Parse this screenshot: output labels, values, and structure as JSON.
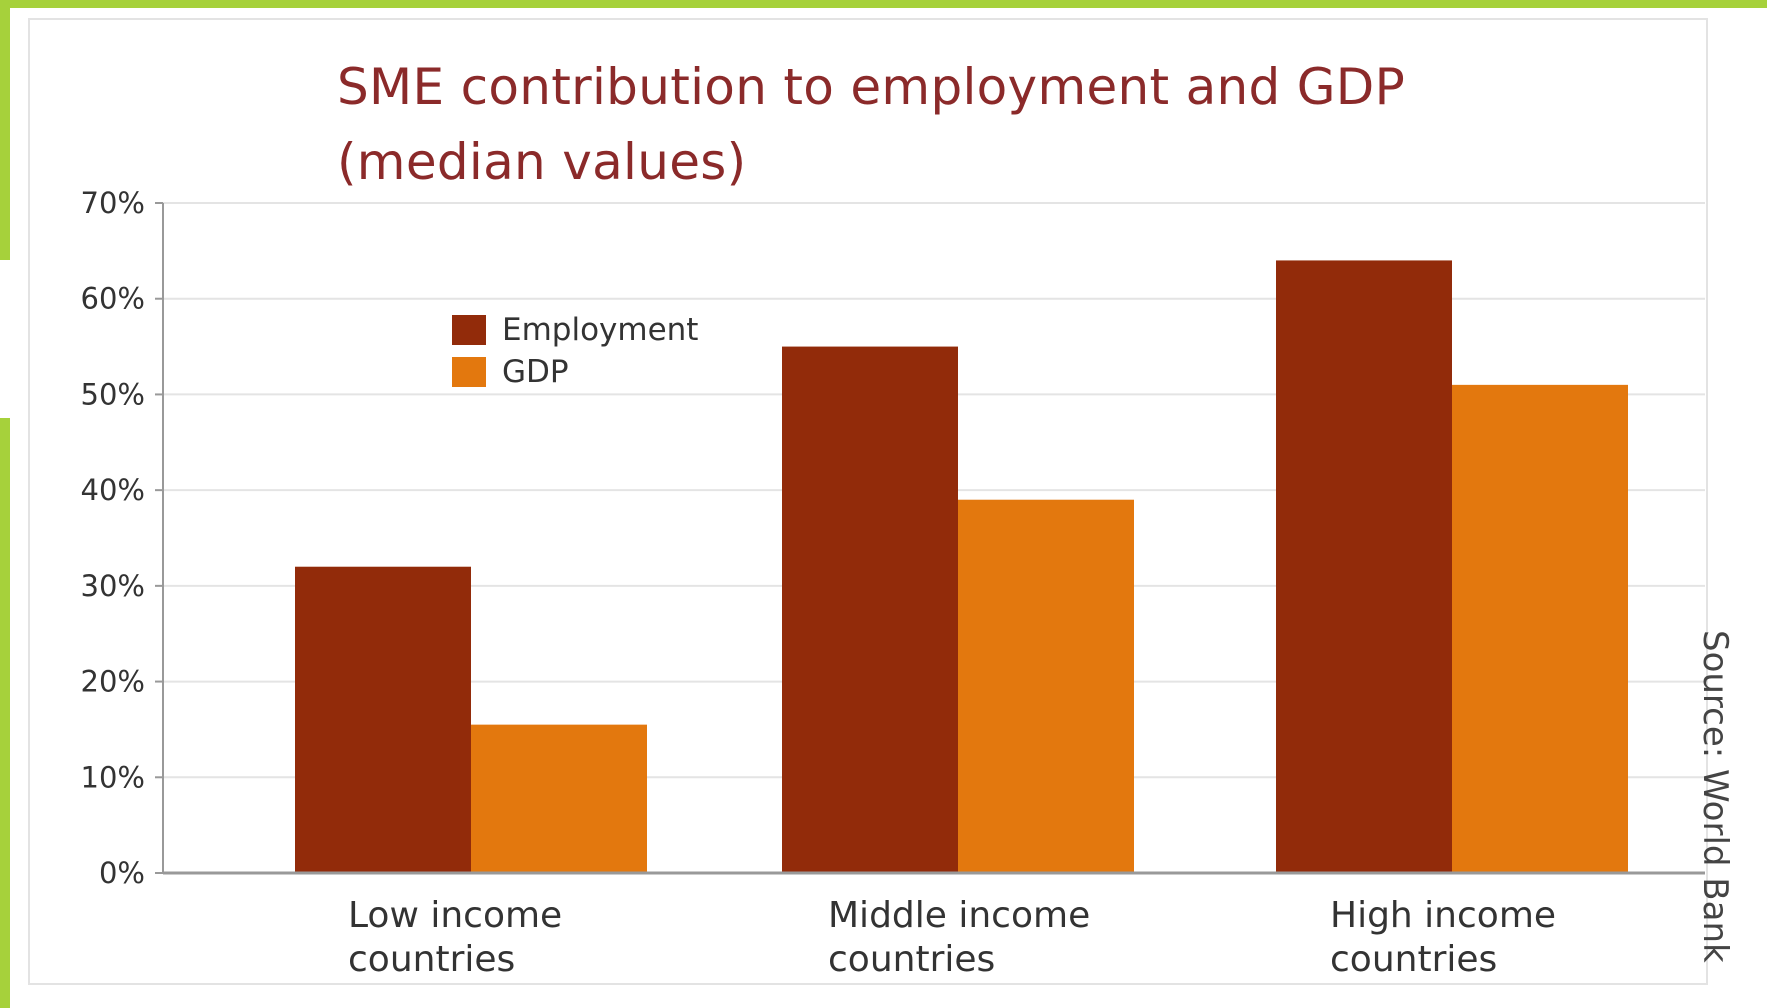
{
  "chart_data": {
    "type": "bar",
    "title_lines": [
      "SME contribution to employment and GDP",
      "(median values)"
    ],
    "categories": [
      {
        "line1": "Low income",
        "line2": "countries"
      },
      {
        "line1": "Middle income",
        "line2": "countries"
      },
      {
        "line1": "High income",
        "line2": "countries"
      }
    ],
    "series": [
      {
        "name": "Employment",
        "color": "#922b0a",
        "values": [
          32,
          55,
          64
        ]
      },
      {
        "name": "GDP",
        "color": "#e3780e",
        "values": [
          15.5,
          39,
          51
        ]
      }
    ],
    "ylim": [
      0,
      70
    ],
    "yticks": [
      "0%",
      "10%",
      "20%",
      "30%",
      "40%",
      "50%",
      "60%",
      "70%"
    ],
    "grid": true,
    "legend_position": "top-left",
    "source": "Source: World Bank"
  }
}
